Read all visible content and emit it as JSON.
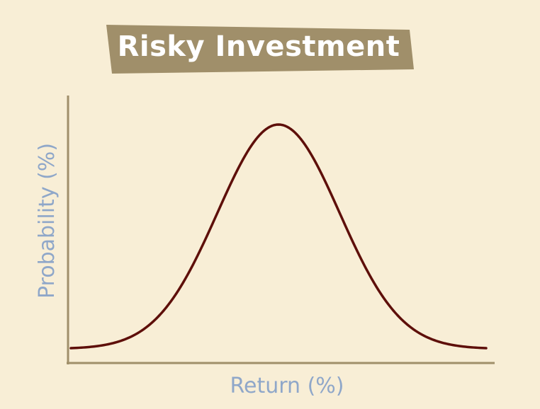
{
  "colors": {
    "background": "#f8eed6",
    "banner": "#a08f6a",
    "title_text": "#ffffff",
    "axis": "#a08f6a",
    "curve": "#5e0f0a",
    "axis_label": "#8fa7c9"
  },
  "chart_data": {
    "type": "line",
    "title": "Risky Investment",
    "xlabel": "Return (%)",
    "ylabel": "Probability (%)",
    "grid": false,
    "ticks": false,
    "shape": "normal-distribution",
    "series": [
      {
        "mean": 0,
        "std": 1
      }
    ],
    "xlim": [
      -3.4,
      3.4
    ]
  }
}
